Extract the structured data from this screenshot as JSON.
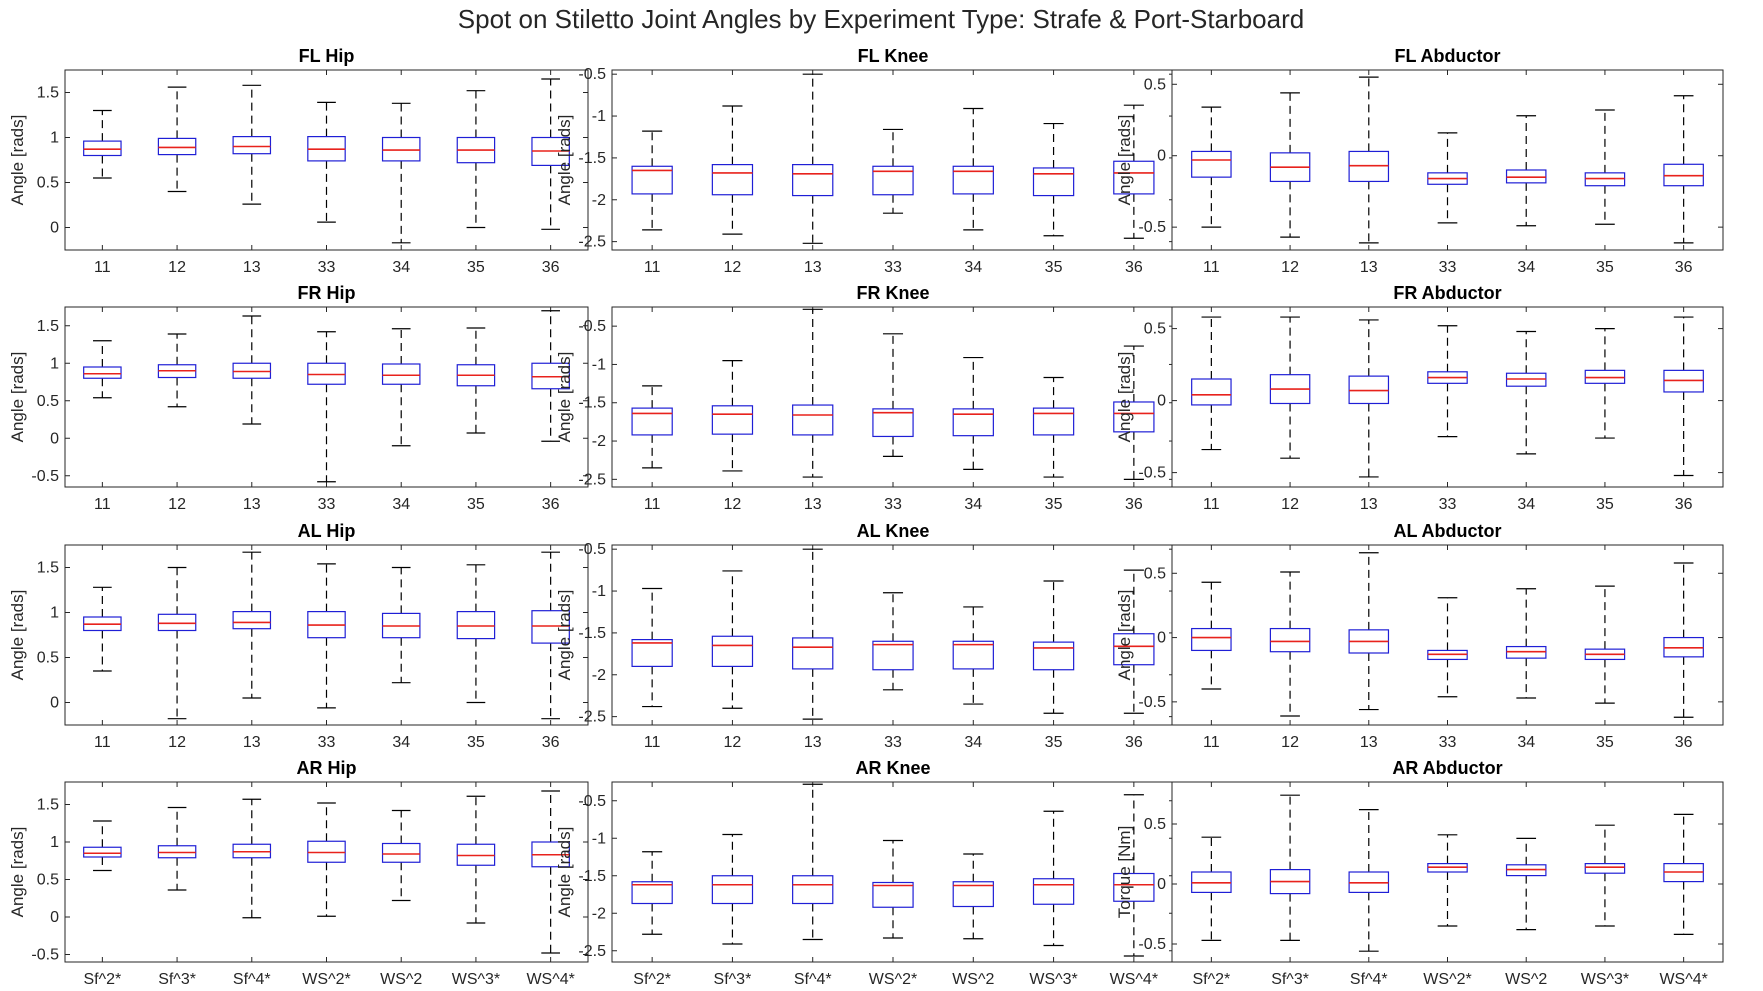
{
  "figure": {
    "title": "Spot on Stiletto Joint Angles by Experiment Type: Strafe & Port-Starboard"
  },
  "chart_data": [
    {
      "type": "box",
      "title": "FL Hip",
      "ylabel": "Angle [rads]",
      "ylim": [
        -0.25,
        1.75
      ],
      "yticks": [
        0,
        0.5,
        1,
        1.5
      ],
      "categories": [
        "11",
        "12",
        "13",
        "33",
        "34",
        "35",
        "36"
      ],
      "boxes": [
        {
          "min": 0.55,
          "q1": 0.8,
          "median": 0.87,
          "q3": 0.96,
          "max": 1.3
        },
        {
          "min": 0.4,
          "q1": 0.81,
          "median": 0.89,
          "q3": 0.99,
          "max": 1.56
        },
        {
          "min": 0.26,
          "q1": 0.82,
          "median": 0.9,
          "q3": 1.01,
          "max": 1.58
        },
        {
          "min": 0.06,
          "q1": 0.74,
          "median": 0.87,
          "q3": 1.01,
          "max": 1.39
        },
        {
          "min": -0.17,
          "q1": 0.74,
          "median": 0.86,
          "q3": 1.0,
          "max": 1.38
        },
        {
          "min": 0.0,
          "q1": 0.72,
          "median": 0.86,
          "q3": 1.0,
          "max": 1.52
        },
        {
          "min": -0.02,
          "q1": 0.69,
          "median": 0.85,
          "q3": 1.0,
          "max": 1.65
        }
      ]
    },
    {
      "type": "box",
      "title": "FL Knee",
      "ylabel": "Angle [rads]",
      "ylim": [
        -2.6,
        -0.45
      ],
      "yticks": [
        -2.5,
        -2,
        -1.5,
        -1,
        -0.5
      ],
      "categories": [
        "11",
        "12",
        "13",
        "33",
        "34",
        "35",
        "36"
      ],
      "boxes": [
        {
          "min": -2.36,
          "q1": -1.93,
          "median": -1.65,
          "q3": -1.6,
          "max": -1.18
        },
        {
          "min": -2.41,
          "q1": -1.94,
          "median": -1.68,
          "q3": -1.58,
          "max": -0.88
        },
        {
          "min": -2.52,
          "q1": -1.95,
          "median": -1.69,
          "q3": -1.58,
          "max": -0.5
        },
        {
          "min": -2.16,
          "q1": -1.94,
          "median": -1.66,
          "q3": -1.6,
          "max": -1.16
        },
        {
          "min": -2.36,
          "q1": -1.93,
          "median": -1.66,
          "q3": -1.6,
          "max": -0.91
        },
        {
          "min": -2.43,
          "q1": -1.95,
          "median": -1.69,
          "q3": -1.62,
          "max": -1.09
        },
        {
          "min": -2.46,
          "q1": -1.93,
          "median": -1.68,
          "q3": -1.54,
          "max": -0.87
        }
      ]
    },
    {
      "type": "box",
      "title": "FL Abductor",
      "ylabel": "Angle [rads]",
      "ylim": [
        -0.66,
        0.6
      ],
      "yticks": [
        -0.5,
        0,
        0.5
      ],
      "categories": [
        "11",
        "12",
        "13",
        "33",
        "34",
        "35",
        "36"
      ],
      "boxes": [
        {
          "min": -0.5,
          "q1": -0.15,
          "median": -0.03,
          "q3": 0.03,
          "max": 0.34
        },
        {
          "min": -0.57,
          "q1": -0.18,
          "median": -0.08,
          "q3": 0.02,
          "max": 0.44
        },
        {
          "min": -0.61,
          "q1": -0.18,
          "median": -0.07,
          "q3": 0.03,
          "max": 0.55
        },
        {
          "min": -0.47,
          "q1": -0.2,
          "median": -0.16,
          "q3": -0.12,
          "max": 0.16
        },
        {
          "min": -0.49,
          "q1": -0.19,
          "median": -0.15,
          "q3": -0.1,
          "max": 0.28
        },
        {
          "min": -0.48,
          "q1": -0.21,
          "median": -0.16,
          "q3": -0.12,
          "max": 0.32
        },
        {
          "min": -0.61,
          "q1": -0.21,
          "median": -0.14,
          "q3": -0.06,
          "max": 0.42
        }
      ]
    },
    {
      "type": "box",
      "title": "FR Hip",
      "ylabel": "Angle [rads]",
      "ylim": [
        -0.65,
        1.75
      ],
      "yticks": [
        -0.5,
        0,
        0.5,
        1,
        1.5
      ],
      "categories": [
        "11",
        "12",
        "13",
        "33",
        "34",
        "35",
        "36"
      ],
      "boxes": [
        {
          "min": 0.54,
          "q1": 0.8,
          "median": 0.86,
          "q3": 0.95,
          "max": 1.3
        },
        {
          "min": 0.42,
          "q1": 0.81,
          "median": 0.9,
          "q3": 0.98,
          "max": 1.39
        },
        {
          "min": 0.19,
          "q1": 0.8,
          "median": 0.89,
          "q3": 1.0,
          "max": 1.63
        },
        {
          "min": -0.58,
          "q1": 0.72,
          "median": 0.85,
          "q3": 1.0,
          "max": 1.42
        },
        {
          "min": -0.1,
          "q1": 0.72,
          "median": 0.84,
          "q3": 0.99,
          "max": 1.46
        },
        {
          "min": 0.07,
          "q1": 0.7,
          "median": 0.84,
          "q3": 0.98,
          "max": 1.47
        },
        {
          "min": -0.04,
          "q1": 0.66,
          "median": 0.82,
          "q3": 1.0,
          "max": 1.7
        }
      ]
    },
    {
      "type": "box",
      "title": "FR Knee",
      "ylabel": "Angle [rads]",
      "ylim": [
        -2.6,
        -0.25
      ],
      "yticks": [
        -2.5,
        -2,
        -1.5,
        -1,
        -0.5
      ],
      "categories": [
        "11",
        "12",
        "13",
        "33",
        "34",
        "35",
        "36"
      ],
      "boxes": [
        {
          "min": -2.35,
          "q1": -1.92,
          "median": -1.64,
          "q3": -1.57,
          "max": -1.28
        },
        {
          "min": -2.39,
          "q1": -1.91,
          "median": -1.65,
          "q3": -1.54,
          "max": -0.95
        },
        {
          "min": -2.47,
          "q1": -1.92,
          "median": -1.66,
          "q3": -1.53,
          "max": -0.28
        },
        {
          "min": -2.2,
          "q1": -1.94,
          "median": -1.63,
          "q3": -1.58,
          "max": -0.6
        },
        {
          "min": -2.37,
          "q1": -1.93,
          "median": -1.65,
          "q3": -1.58,
          "max": -0.91
        },
        {
          "min": -2.47,
          "q1": -1.92,
          "median": -1.64,
          "q3": -1.57,
          "max": -1.17
        },
        {
          "min": -2.5,
          "q1": -1.88,
          "median": -1.64,
          "q3": -1.49,
          "max": -0.76
        }
      ]
    },
    {
      "type": "box",
      "title": "FR Abductor",
      "ylabel": "Angle [rads]",
      "ylim": [
        -0.6,
        0.65
      ],
      "yticks": [
        -0.5,
        0,
        0.5
      ],
      "categories": [
        "11",
        "12",
        "13",
        "33",
        "34",
        "35",
        "36"
      ],
      "boxes": [
        {
          "min": -0.34,
          "q1": -0.03,
          "median": 0.04,
          "q3": 0.15,
          "max": 0.58
        },
        {
          "min": -0.4,
          "q1": -0.02,
          "median": 0.08,
          "q3": 0.18,
          "max": 0.58
        },
        {
          "min": -0.53,
          "q1": -0.02,
          "median": 0.07,
          "q3": 0.17,
          "max": 0.56
        },
        {
          "min": -0.25,
          "q1": 0.12,
          "median": 0.16,
          "q3": 0.2,
          "max": 0.52
        },
        {
          "min": -0.37,
          "q1": 0.1,
          "median": 0.15,
          "q3": 0.19,
          "max": 0.48
        },
        {
          "min": -0.26,
          "q1": 0.12,
          "median": 0.16,
          "q3": 0.21,
          "max": 0.5
        },
        {
          "min": -0.52,
          "q1": 0.06,
          "median": 0.14,
          "q3": 0.21,
          "max": 0.58
        }
      ]
    },
    {
      "type": "box",
      "title": "AL Hip",
      "ylabel": "Angle [rads]",
      "ylim": [
        -0.25,
        1.75
      ],
      "yticks": [
        0,
        0.5,
        1,
        1.5
      ],
      "categories": [
        "11",
        "12",
        "13",
        "33",
        "34",
        "35",
        "36"
      ],
      "boxes": [
        {
          "min": 0.35,
          "q1": 0.8,
          "median": 0.87,
          "q3": 0.95,
          "max": 1.28
        },
        {
          "min": -0.18,
          "q1": 0.8,
          "median": 0.88,
          "q3": 0.98,
          "max": 1.5
        },
        {
          "min": 0.05,
          "q1": 0.82,
          "median": 0.89,
          "q3": 1.01,
          "max": 1.67
        },
        {
          "min": -0.06,
          "q1": 0.72,
          "median": 0.86,
          "q3": 1.01,
          "max": 1.54
        },
        {
          "min": 0.22,
          "q1": 0.72,
          "median": 0.85,
          "q3": 0.99,
          "max": 1.5
        },
        {
          "min": 0.0,
          "q1": 0.71,
          "median": 0.85,
          "q3": 1.01,
          "max": 1.53
        },
        {
          "min": -0.18,
          "q1": 0.66,
          "median": 0.85,
          "q3": 1.02,
          "max": 1.67
        }
      ]
    },
    {
      "type": "box",
      "title": "AL Knee",
      "ylabel": "Angle [rads]",
      "ylim": [
        -2.6,
        -0.45
      ],
      "yticks": [
        -2.5,
        -2,
        -1.5,
        -1,
        -0.5
      ],
      "categories": [
        "11",
        "12",
        "13",
        "33",
        "34",
        "35",
        "36"
      ],
      "boxes": [
        {
          "min": -2.38,
          "q1": -1.9,
          "median": -1.62,
          "q3": -1.58,
          "max": -0.97
        },
        {
          "min": -2.4,
          "q1": -1.9,
          "median": -1.65,
          "q3": -1.54,
          "max": -0.76
        },
        {
          "min": -2.53,
          "q1": -1.93,
          "median": -1.67,
          "q3": -1.56,
          "max": -0.5
        },
        {
          "min": -2.18,
          "q1": -1.94,
          "median": -1.64,
          "q3": -1.6,
          "max": -1.02
        },
        {
          "min": -2.35,
          "q1": -1.93,
          "median": -1.64,
          "q3": -1.6,
          "max": -1.19
        },
        {
          "min": -2.46,
          "q1": -1.94,
          "median": -1.68,
          "q3": -1.61,
          "max": -0.88
        },
        {
          "min": -2.46,
          "q1": -1.88,
          "median": -1.66,
          "q3": -1.51,
          "max": -0.75
        }
      ]
    },
    {
      "type": "box",
      "title": "AL Abductor",
      "ylabel": "Angle [rads]",
      "ylim": [
        -0.68,
        0.72
      ],
      "yticks": [
        -0.5,
        0,
        0.5
      ],
      "categories": [
        "11",
        "12",
        "13",
        "33",
        "34",
        "35",
        "36"
      ],
      "boxes": [
        {
          "min": -0.4,
          "q1": -0.1,
          "median": 0.0,
          "q3": 0.07,
          "max": 0.43
        },
        {
          "min": -0.61,
          "q1": -0.11,
          "median": -0.03,
          "q3": 0.07,
          "max": 0.51
        },
        {
          "min": -0.56,
          "q1": -0.12,
          "median": -0.03,
          "q3": 0.06,
          "max": 0.66
        },
        {
          "min": -0.46,
          "q1": -0.17,
          "median": -0.13,
          "q3": -0.1,
          "max": 0.31
        },
        {
          "min": -0.47,
          "q1": -0.16,
          "median": -0.11,
          "q3": -0.07,
          "max": 0.38
        },
        {
          "min": -0.51,
          "q1": -0.17,
          "median": -0.13,
          "q3": -0.09,
          "max": 0.4
        },
        {
          "min": -0.62,
          "q1": -0.15,
          "median": -0.08,
          "q3": 0.0,
          "max": 0.58
        }
      ]
    },
    {
      "type": "box",
      "title": "AR Hip",
      "ylabel": "Angle [rads]",
      "ylim": [
        -0.6,
        1.8
      ],
      "yticks": [
        -0.5,
        0,
        0.5,
        1,
        1.5
      ],
      "categories": [
        "Sf^2*",
        "Sf^3*",
        "Sf^4*",
        "WS^2*",
        "WS^2",
        "WS^3*",
        "WS^4*"
      ],
      "boxes": [
        {
          "min": 0.62,
          "q1": 0.8,
          "median": 0.85,
          "q3": 0.93,
          "max": 1.28
        },
        {
          "min": 0.36,
          "q1": 0.79,
          "median": 0.86,
          "q3": 0.95,
          "max": 1.46
        },
        {
          "min": -0.01,
          "q1": 0.79,
          "median": 0.87,
          "q3": 0.97,
          "max": 1.57
        },
        {
          "min": 0.01,
          "q1": 0.73,
          "median": 0.86,
          "q3": 1.01,
          "max": 1.52
        },
        {
          "min": 0.22,
          "q1": 0.73,
          "median": 0.84,
          "q3": 0.98,
          "max": 1.42
        },
        {
          "min": -0.08,
          "q1": 0.69,
          "median": 0.82,
          "q3": 0.97,
          "max": 1.61
        },
        {
          "min": -0.48,
          "q1": 0.67,
          "median": 0.83,
          "q3": 1.0,
          "max": 1.68
        }
      ]
    },
    {
      "type": "box",
      "title": "AR Knee",
      "ylabel": "Angle [rads]",
      "ylim": [
        -2.65,
        -0.25
      ],
      "yticks": [
        -2.5,
        -2,
        -1.5,
        -1,
        -0.5
      ],
      "categories": [
        "Sf^2*",
        "Sf^3*",
        "Sf^4*",
        "WS^2*",
        "WS^2",
        "WS^3*",
        "WS^4*"
      ],
      "boxes": [
        {
          "min": -2.28,
          "q1": -1.87,
          "median": -1.62,
          "q3": -1.58,
          "max": -1.18
        },
        {
          "min": -2.41,
          "q1": -1.87,
          "median": -1.62,
          "q3": -1.5,
          "max": -0.95
        },
        {
          "min": -2.35,
          "q1": -1.87,
          "median": -1.62,
          "q3": -1.5,
          "max": -0.28
        },
        {
          "min": -2.33,
          "q1": -1.92,
          "median": -1.63,
          "q3": -1.59,
          "max": -1.03
        },
        {
          "min": -2.34,
          "q1": -1.91,
          "median": -1.63,
          "q3": -1.58,
          "max": -1.21
        },
        {
          "min": -2.43,
          "q1": -1.88,
          "median": -1.62,
          "q3": -1.54,
          "max": -0.64
        },
        {
          "min": -2.57,
          "q1": -1.84,
          "median": -1.62,
          "q3": -1.47,
          "max": -0.42
        }
      ]
    },
    {
      "type": "box",
      "title": "AR Abductor",
      "ylabel": "Torque [Nm]",
      "ylim": [
        -0.65,
        0.85
      ],
      "yticks": [
        -0.5,
        0,
        0.5
      ],
      "categories": [
        "Sf^2*",
        "Sf^3*",
        "Sf^4*",
        "WS^2*",
        "WS^2",
        "WS^3*",
        "WS^4*"
      ],
      "boxes": [
        {
          "min": -0.47,
          "q1": -0.07,
          "median": 0.01,
          "q3": 0.1,
          "max": 0.39
        },
        {
          "min": -0.47,
          "q1": -0.08,
          "median": 0.02,
          "q3": 0.12,
          "max": 0.74
        },
        {
          "min": -0.56,
          "q1": -0.07,
          "median": 0.01,
          "q3": 0.1,
          "max": 0.62
        },
        {
          "min": -0.35,
          "q1": 0.1,
          "median": 0.14,
          "q3": 0.17,
          "max": 0.41
        },
        {
          "min": -0.38,
          "q1": 0.07,
          "median": 0.12,
          "q3": 0.16,
          "max": 0.38
        },
        {
          "min": -0.35,
          "q1": 0.09,
          "median": 0.14,
          "q3": 0.17,
          "max": 0.49
        },
        {
          "min": -0.42,
          "q1": 0.02,
          "median": 0.1,
          "q3": 0.17,
          "max": 0.58
        }
      ]
    }
  ]
}
